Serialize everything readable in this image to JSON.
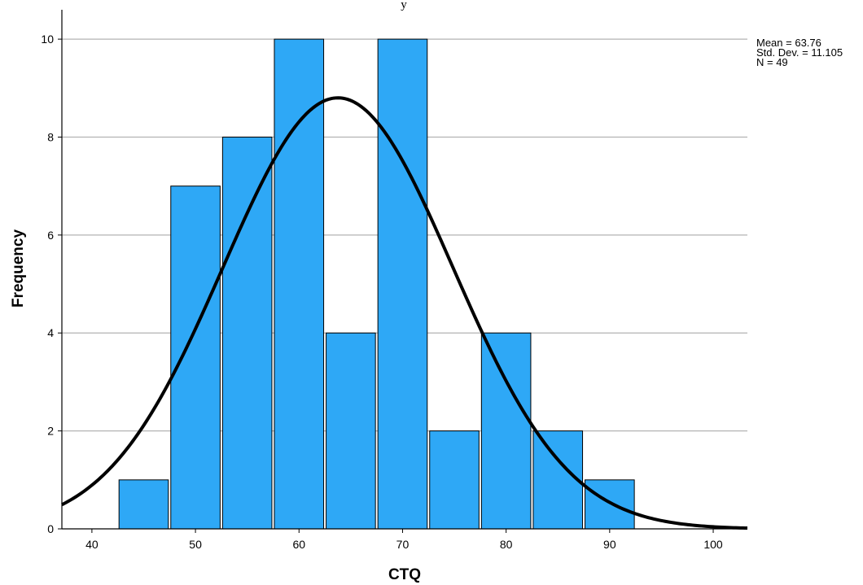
{
  "chart_data": {
    "type": "bar",
    "subtype": "histogram",
    "title_fragment": "y",
    "xlabel": "CTQ",
    "ylabel": "Frequency",
    "xlim": [
      37.1,
      103.3
    ],
    "ylim": [
      0,
      10.6
    ],
    "x_ticks": [
      40,
      50,
      60,
      70,
      80,
      90,
      100
    ],
    "y_ticks": [
      0,
      2,
      4,
      6,
      8,
      10
    ],
    "bins": [
      {
        "start": 42.5,
        "end": 47.5,
        "count": 1
      },
      {
        "start": 47.5,
        "end": 52.5,
        "count": 7
      },
      {
        "start": 52.5,
        "end": 57.5,
        "count": 8
      },
      {
        "start": 57.5,
        "end": 62.5,
        "count": 10
      },
      {
        "start": 62.5,
        "end": 67.5,
        "count": 4
      },
      {
        "start": 67.5,
        "end": 72.5,
        "count": 10
      },
      {
        "start": 72.5,
        "end": 77.5,
        "count": 2
      },
      {
        "start": 77.5,
        "end": 82.5,
        "count": 4
      },
      {
        "start": 82.5,
        "end": 87.5,
        "count": 2
      },
      {
        "start": 87.5,
        "end": 92.5,
        "count": 1
      }
    ],
    "normal_curve": {
      "mean": 63.76,
      "std_dev": 11.105,
      "n": 49,
      "bin_width": 5
    },
    "stats": [
      "Mean = 63.76",
      "Std. Dev. = 11.105",
      "N = 49"
    ],
    "grid": "horizontal",
    "stats_placement": "top-right",
    "colors": {
      "bar": "#2EA8F6",
      "bar_edge": "#000000",
      "curve": "#000000",
      "grid": "#b3b3b3"
    }
  }
}
